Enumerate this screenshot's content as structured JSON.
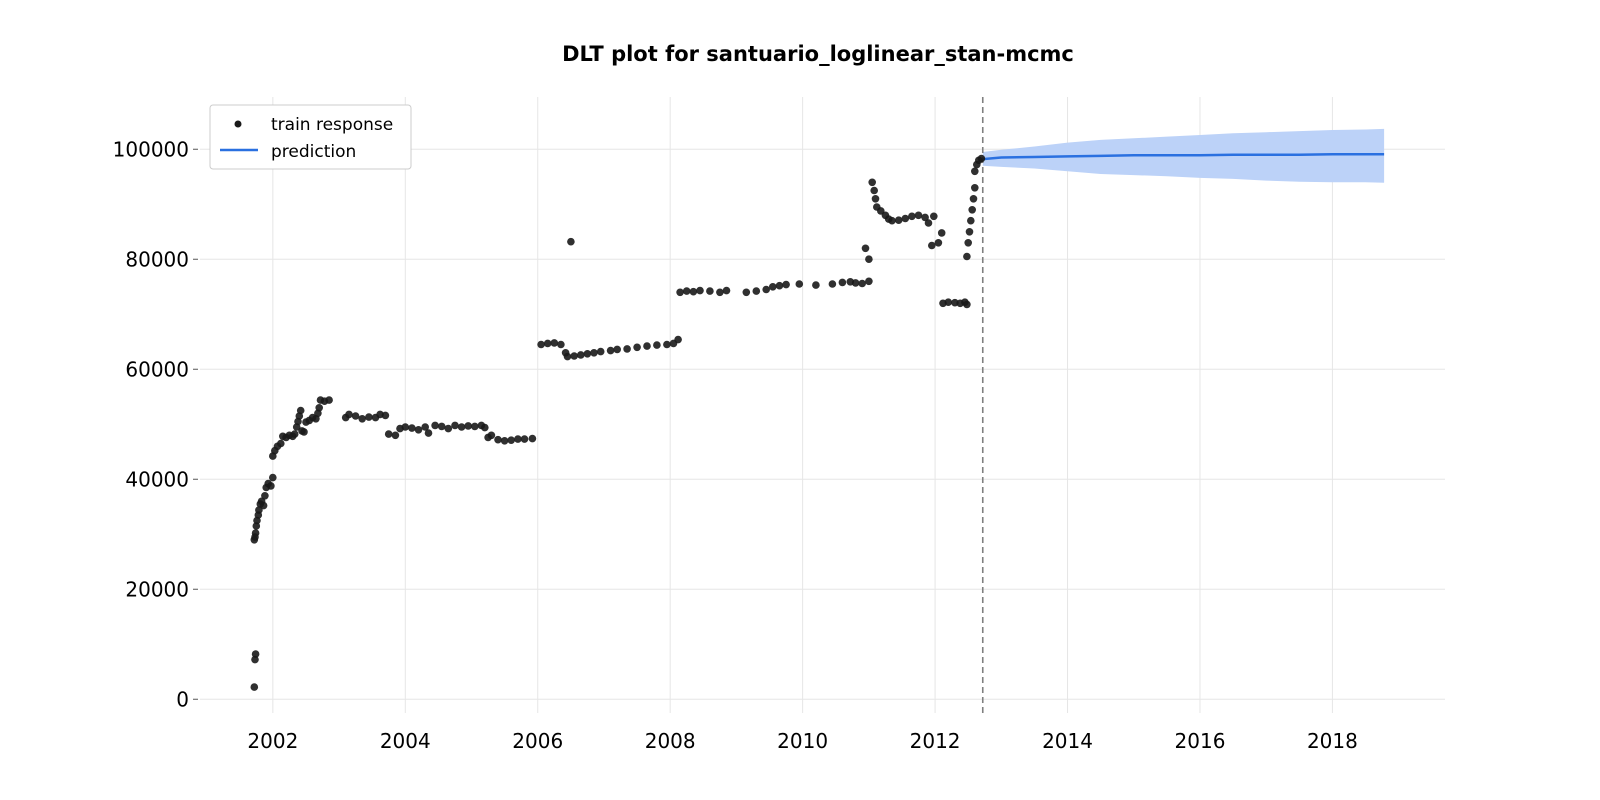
{
  "chart_data": {
    "type": "scatter",
    "title": "DLT plot for santuario_loglinear_stan-mcmc",
    "xlabel": "",
    "ylabel": "",
    "xlim": [
      2000.9,
      2019.7
    ],
    "ylim": [
      -2500,
      109500
    ],
    "x_ticks": [
      2002,
      2004,
      2006,
      2008,
      2010,
      2012,
      2014,
      2016,
      2018
    ],
    "x_tick_labels": [
      "2002",
      "2004",
      "2006",
      "2008",
      "2010",
      "2012",
      "2014",
      "2016",
      "2018"
    ],
    "y_ticks": [
      0,
      20000,
      40000,
      60000,
      80000,
      100000
    ],
    "y_tick_labels": [
      "0",
      "20000",
      "40000",
      "60000",
      "80000",
      "100000"
    ],
    "grid": true,
    "legend": {
      "position": "top-left",
      "entries": [
        "train response",
        "prediction"
      ]
    },
    "split_date": 2012.72,
    "colors": {
      "train": "#1a1a1a",
      "prediction": "#2a70e0",
      "band": "#bcd2f8",
      "split": "#808080",
      "grid": "#e6e6e6"
    },
    "series": [
      {
        "name": "train response",
        "kind": "scatter",
        "points": [
          [
            2001.72,
            2200
          ],
          [
            2001.73,
            7200
          ],
          [
            2001.74,
            8200
          ],
          [
            2001.72,
            29000
          ],
          [
            2001.73,
            29500
          ],
          [
            2001.74,
            30200
          ],
          [
            2001.75,
            31500
          ],
          [
            2001.76,
            32500
          ],
          [
            2001.78,
            33500
          ],
          [
            2001.79,
            34400
          ],
          [
            2001.81,
            35500
          ],
          [
            2001.83,
            36000
          ],
          [
            2001.86,
            35200
          ],
          [
            2001.88,
            37000
          ],
          [
            2001.9,
            38500
          ],
          [
            2001.93,
            39200
          ],
          [
            2001.97,
            38800
          ],
          [
            2002.0,
            40300
          ],
          [
            2002.0,
            44200
          ],
          [
            2002.03,
            45200
          ],
          [
            2002.07,
            46000
          ],
          [
            2002.12,
            46500
          ],
          [
            2002.15,
            47800
          ],
          [
            2002.2,
            47600
          ],
          [
            2002.25,
            48000
          ],
          [
            2002.3,
            47800
          ],
          [
            2002.33,
            48200
          ],
          [
            2002.36,
            49500
          ],
          [
            2002.38,
            50500
          ],
          [
            2002.4,
            51500
          ],
          [
            2002.42,
            52500
          ],
          [
            2002.44,
            48800
          ],
          [
            2002.47,
            48600
          ],
          [
            2002.5,
            50400
          ],
          [
            2002.55,
            50700
          ],
          [
            2002.6,
            51200
          ],
          [
            2002.65,
            51000
          ],
          [
            2002.68,
            52000
          ],
          [
            2002.7,
            53000
          ],
          [
            2002.72,
            54400
          ],
          [
            2002.78,
            54200
          ],
          [
            2002.85,
            54400
          ],
          [
            2003.1,
            51200
          ],
          [
            2003.15,
            51800
          ],
          [
            2003.25,
            51500
          ],
          [
            2003.35,
            51000
          ],
          [
            2003.45,
            51300
          ],
          [
            2003.55,
            51200
          ],
          [
            2003.62,
            51800
          ],
          [
            2003.7,
            51600
          ],
          [
            2003.75,
            48200
          ],
          [
            2003.85,
            48000
          ],
          [
            2003.92,
            49200
          ],
          [
            2004.0,
            49500
          ],
          [
            2004.1,
            49300
          ],
          [
            2004.2,
            49000
          ],
          [
            2004.3,
            49500
          ],
          [
            2004.35,
            48400
          ],
          [
            2004.45,
            49800
          ],
          [
            2004.55,
            49600
          ],
          [
            2004.65,
            49200
          ],
          [
            2004.75,
            49800
          ],
          [
            2004.85,
            49500
          ],
          [
            2004.95,
            49700
          ],
          [
            2005.05,
            49600
          ],
          [
            2005.15,
            49800
          ],
          [
            2005.2,
            49400
          ],
          [
            2005.25,
            47600
          ],
          [
            2005.3,
            48000
          ],
          [
            2005.4,
            47200
          ],
          [
            2005.5,
            47000
          ],
          [
            2005.6,
            47100
          ],
          [
            2005.7,
            47300
          ],
          [
            2005.8,
            47300
          ],
          [
            2005.92,
            47400
          ],
          [
            2006.05,
            64500
          ],
          [
            2006.15,
            64700
          ],
          [
            2006.25,
            64800
          ],
          [
            2006.35,
            64500
          ],
          [
            2006.42,
            63000
          ],
          [
            2006.45,
            62300
          ],
          [
            2006.5,
            83200
          ],
          [
            2006.55,
            62400
          ],
          [
            2006.65,
            62600
          ],
          [
            2006.75,
            62800
          ],
          [
            2006.85,
            63000
          ],
          [
            2006.95,
            63200
          ],
          [
            2007.1,
            63400
          ],
          [
            2007.2,
            63600
          ],
          [
            2007.35,
            63700
          ],
          [
            2007.5,
            64000
          ],
          [
            2007.65,
            64200
          ],
          [
            2007.8,
            64400
          ],
          [
            2007.95,
            64500
          ],
          [
            2008.05,
            64700
          ],
          [
            2008.12,
            65400
          ],
          [
            2008.15,
            74000
          ],
          [
            2008.25,
            74200
          ],
          [
            2008.35,
            74100
          ],
          [
            2008.45,
            74300
          ],
          [
            2008.6,
            74200
          ],
          [
            2008.75,
            74000
          ],
          [
            2008.85,
            74300
          ],
          [
            2009.15,
            74000
          ],
          [
            2009.3,
            74200
          ],
          [
            2009.45,
            74500
          ],
          [
            2009.55,
            75000
          ],
          [
            2009.65,
            75200
          ],
          [
            2009.75,
            75400
          ],
          [
            2009.95,
            75500
          ],
          [
            2010.2,
            75300
          ],
          [
            2010.45,
            75500
          ],
          [
            2010.6,
            75800
          ],
          [
            2010.72,
            75900
          ],
          [
            2010.8,
            75700
          ],
          [
            2010.9,
            75600
          ],
          [
            2011.0,
            76000
          ],
          [
            2010.95,
            82000
          ],
          [
            2011.0,
            80000
          ],
          [
            2011.05,
            94000
          ],
          [
            2011.08,
            92500
          ],
          [
            2011.1,
            91000
          ],
          [
            2011.12,
            89500
          ],
          [
            2011.18,
            88800
          ],
          [
            2011.25,
            88000
          ],
          [
            2011.3,
            87300
          ],
          [
            2011.35,
            87000
          ],
          [
            2011.45,
            87100
          ],
          [
            2011.55,
            87400
          ],
          [
            2011.65,
            87800
          ],
          [
            2011.75,
            88000
          ],
          [
            2011.85,
            87600
          ],
          [
            2011.9,
            86600
          ],
          [
            2011.95,
            82500
          ],
          [
            2011.98,
            87800
          ],
          [
            2012.05,
            83000
          ],
          [
            2012.1,
            84800
          ],
          [
            2012.12,
            72000
          ],
          [
            2012.2,
            72200
          ],
          [
            2012.3,
            72100
          ],
          [
            2012.38,
            72000
          ],
          [
            2012.45,
            72200
          ],
          [
            2012.48,
            71800
          ],
          [
            2012.48,
            80500
          ],
          [
            2012.5,
            83000
          ],
          [
            2012.52,
            85000
          ],
          [
            2012.54,
            87000
          ],
          [
            2012.56,
            89000
          ],
          [
            2012.58,
            91000
          ],
          [
            2012.6,
            93000
          ],
          [
            2012.6,
            96000
          ],
          [
            2012.63,
            97200
          ],
          [
            2012.66,
            98000
          ],
          [
            2012.7,
            98300
          ]
        ]
      },
      {
        "name": "prediction",
        "kind": "line",
        "x": [
          2012.72,
          2013.0,
          2013.5,
          2014.0,
          2014.5,
          2015.0,
          2015.5,
          2016.0,
          2016.5,
          2017.0,
          2017.5,
          2018.0,
          2018.5,
          2018.78
        ],
        "y": [
          98200,
          98500,
          98600,
          98700,
          98800,
          98900,
          98900,
          98900,
          99000,
          99000,
          99000,
          99100,
          99100,
          99100
        ],
        "lower": [
          97000,
          96800,
          96500,
          96000,
          95500,
          95300,
          95100,
          94800,
          94600,
          94300,
          94100,
          94000,
          94000,
          93900
        ],
        "upper": [
          99500,
          99900,
          100500,
          101200,
          101700,
          102000,
          102300,
          102600,
          102900,
          103100,
          103300,
          103500,
          103600,
          103700
        ]
      }
    ]
  }
}
